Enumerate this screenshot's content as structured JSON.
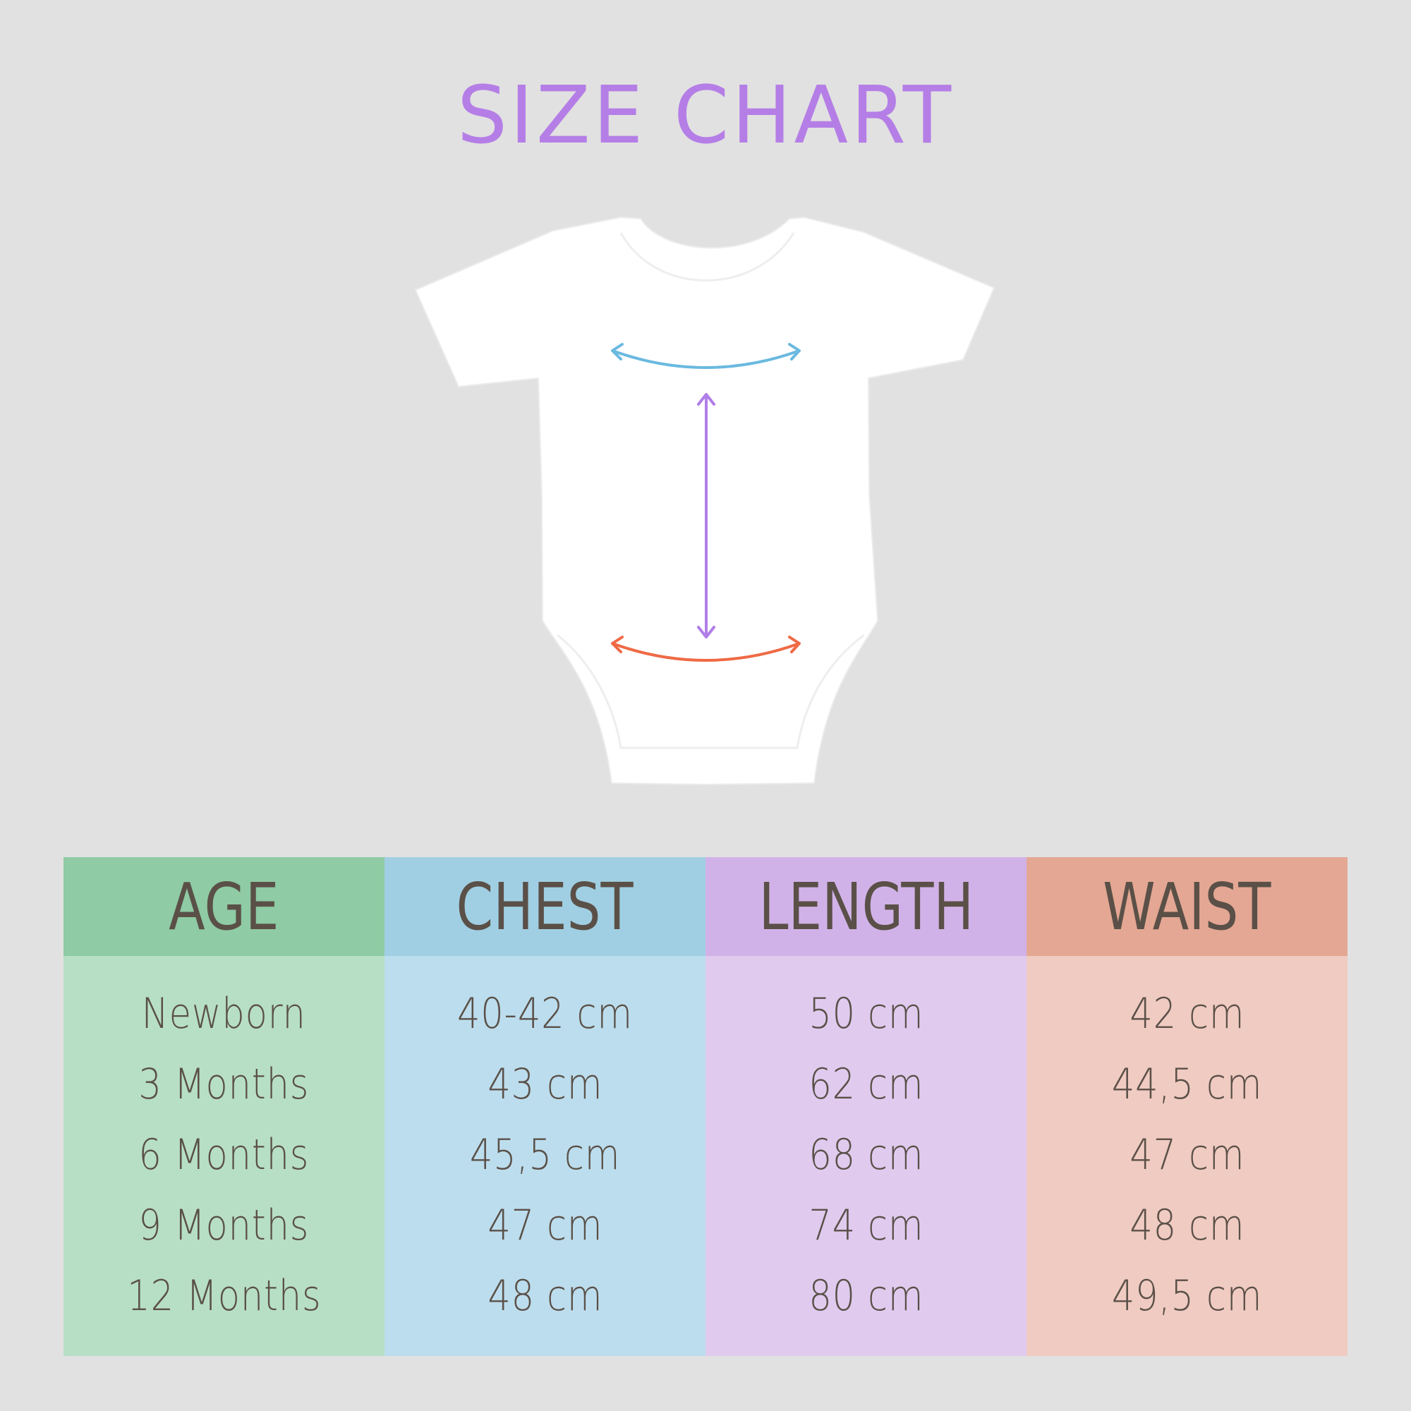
{
  "title": "SIZE CHART",
  "arrow_colors": {
    "chest": "#6ab9e0",
    "length": "#b07ee8",
    "waist": "#ef6a45"
  },
  "table": {
    "columns": [
      {
        "header": "AGE",
        "header_color": "#8fcba4",
        "body_color": "#b7dfc6",
        "values": [
          "Newborn",
          "3 Months",
          "6 Months",
          "9 Months",
          "12 Months"
        ]
      },
      {
        "header": "CHEST",
        "header_color": "#a0cfe3",
        "body_color": "#bcdded",
        "values": [
          "40-42 cm",
          "43 cm",
          "45,5 cm",
          "47 cm",
          "48 cm"
        ]
      },
      {
        "header": "LENGTH",
        "header_color": "#d1b2e8",
        "body_color": "#e0cbef",
        "values": [
          "50 cm",
          "62 cm",
          "68 cm",
          "74 cm",
          "80 cm"
        ]
      },
      {
        "header": "WAIST",
        "header_color": "#e4a793",
        "body_color": "#f0cbc1",
        "values": [
          "42 cm",
          "44,5 cm",
          "47 cm",
          "48 cm",
          "49,5 cm"
        ]
      }
    ]
  }
}
